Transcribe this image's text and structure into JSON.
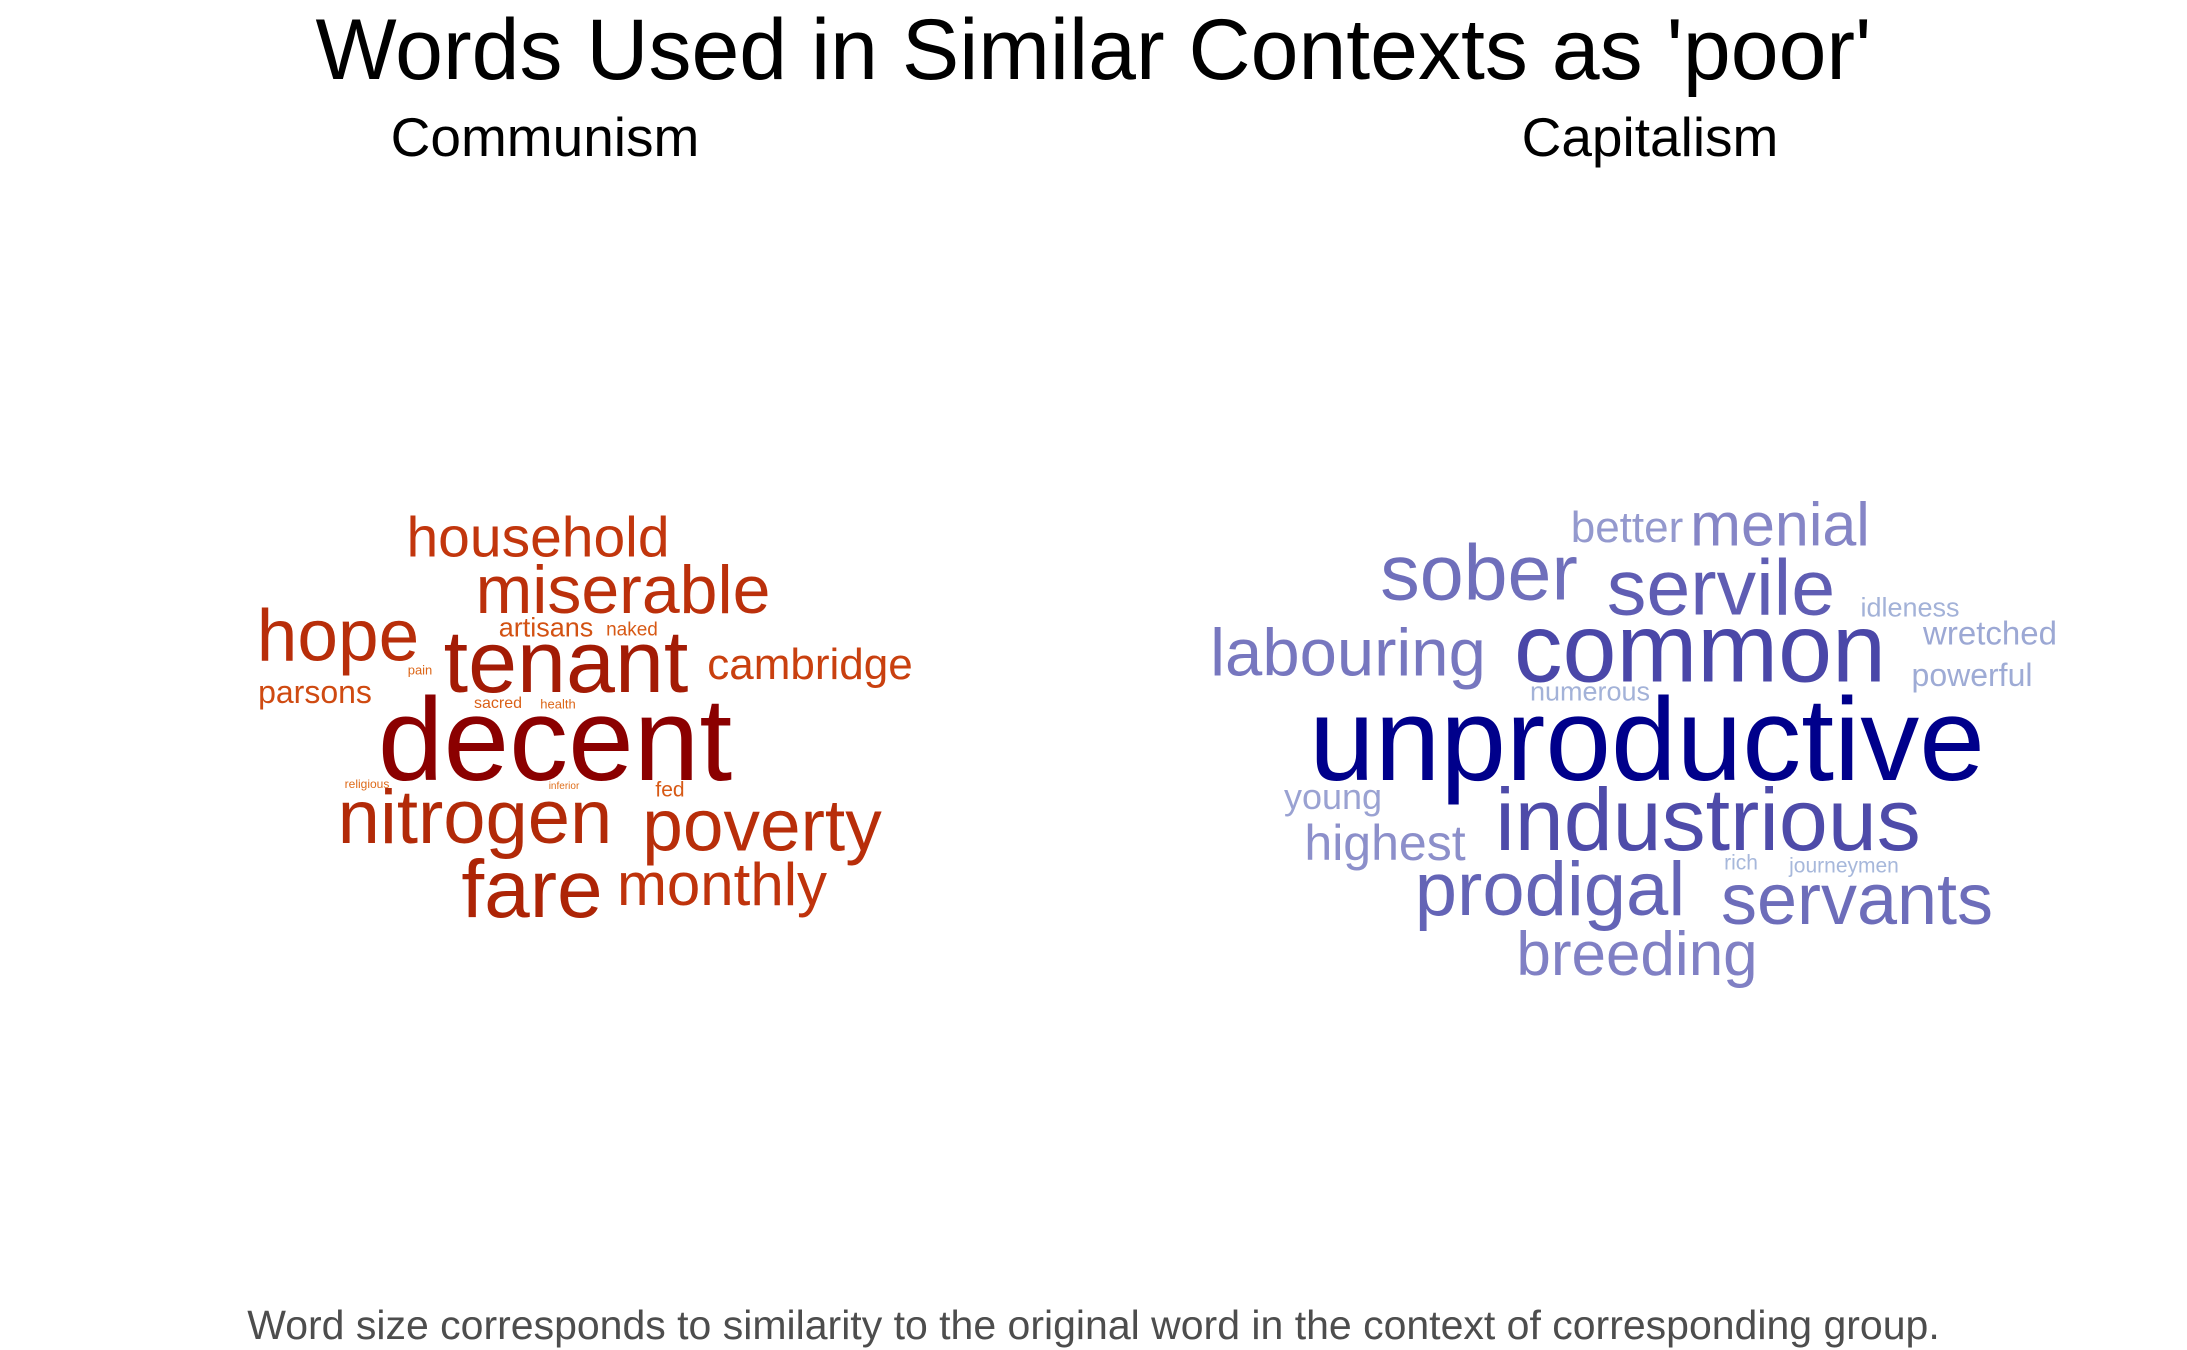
{
  "title": "Words Used in Similar Contexts as 'poor'",
  "caption": "Word size corresponds to similarity to the original word in the context of corresponding group.",
  "chart_data": [
    {
      "type": "wordcloud",
      "title": "Communism",
      "words": [
        {
          "text": "decent",
          "size": 118,
          "color": "#8b0000"
        },
        {
          "text": "tenant",
          "size": 88,
          "color": "#a31b05"
        },
        {
          "text": "fare",
          "size": 82,
          "color": "#ad2406"
        },
        {
          "text": "nitrogen",
          "size": 76,
          "color": "#b22a08"
        },
        {
          "text": "hope",
          "size": 73,
          "color": "#b82e0a"
        },
        {
          "text": "poverty",
          "size": 73,
          "color": "#b82e0a"
        },
        {
          "text": "miserable",
          "size": 68,
          "color": "#bb300b"
        },
        {
          "text": "monthly",
          "size": 60,
          "color": "#bf330c"
        },
        {
          "text": "household",
          "size": 57,
          "color": "#c2360d"
        },
        {
          "text": "cambridge",
          "size": 44,
          "color": "#c9400f"
        },
        {
          "text": "parsons",
          "size": 32,
          "color": "#cf4a11"
        },
        {
          "text": "artisans",
          "size": 27,
          "color": "#d35213"
        },
        {
          "text": "naked",
          "size": 19,
          "color": "#d75915"
        },
        {
          "text": "fed",
          "size": 21,
          "color": "#d75915"
        },
        {
          "text": "sacred",
          "size": 16,
          "color": "#da6017"
        },
        {
          "text": "health",
          "size": 13,
          "color": "#dc6618"
        },
        {
          "text": "pain",
          "size": 13,
          "color": "#dc6618"
        },
        {
          "text": "religious",
          "size": 12,
          "color": "#de6a19"
        },
        {
          "text": "inferior",
          "size": 10,
          "color": "#df6e1a"
        }
      ]
    },
    {
      "type": "wordcloud",
      "title": "Capitalism",
      "words": [
        {
          "text": "unproductive",
          "size": 118,
          "color": "#00008b"
        },
        {
          "text": "common",
          "size": 97,
          "color": "#4a47a8"
        },
        {
          "text": "industrious",
          "size": 88,
          "color": "#4e4ba9"
        },
        {
          "text": "servile",
          "size": 79,
          "color": "#5f5db3"
        },
        {
          "text": "sober",
          "size": 79,
          "color": "#6f6fbb"
        },
        {
          "text": "prodigal",
          "size": 76,
          "color": "#6464b6"
        },
        {
          "text": "servants",
          "size": 72,
          "color": "#6d6dba"
        },
        {
          "text": "labouring",
          "size": 67,
          "color": "#7777bf"
        },
        {
          "text": "breeding",
          "size": 62,
          "color": "#8080c4"
        },
        {
          "text": "menial",
          "size": 61,
          "color": "#8585c6"
        },
        {
          "text": "highest",
          "size": 50,
          "color": "#8c8fca"
        },
        {
          "text": "better",
          "size": 44,
          "color": "#9499ce"
        },
        {
          "text": "young",
          "size": 36,
          "color": "#9aa2d2"
        },
        {
          "text": "wretched",
          "size": 33,
          "color": "#9ca8d4"
        },
        {
          "text": "powerful",
          "size": 32,
          "color": "#9eabd5"
        },
        {
          "text": "idleness",
          "size": 27,
          "color": "#a3b2d8"
        },
        {
          "text": "numerous",
          "size": 27,
          "color": "#a3b2d8"
        },
        {
          "text": "journeymen",
          "size": 21,
          "color": "#a7b8db"
        },
        {
          "text": "rich",
          "size": 21,
          "color": "#a7b8db"
        }
      ]
    }
  ]
}
